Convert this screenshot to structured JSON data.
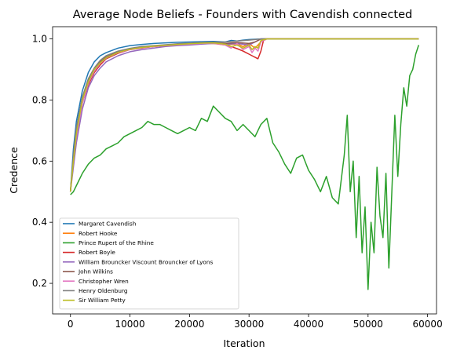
{
  "chart_data": {
    "type": "line",
    "title": "Average Node Beliefs - Founders with Cavendish connected",
    "xlabel": "Iteration",
    "ylabel": "Credence",
    "xlim": [
      -3000,
      61500
    ],
    "ylim": [
      0.1,
      1.04
    ],
    "xticks": [
      0,
      10000,
      20000,
      30000,
      40000,
      50000,
      60000
    ],
    "xtick_labels": [
      "0",
      "10000",
      "20000",
      "30000",
      "40000",
      "50000",
      "60000"
    ],
    "yticks": [
      0.2,
      0.4,
      0.6,
      0.8,
      1.0
    ],
    "ytick_labels": [
      "0.2",
      "0.4",
      "0.6",
      "0.8",
      "1.0"
    ],
    "grid": false,
    "legend_position": "lower-left",
    "series": [
      {
        "name": "Margaret Cavendish",
        "color": "#1f77b4",
        "x": [
          0,
          500,
          1000,
          2000,
          3000,
          4000,
          5000,
          6000,
          8000,
          10000,
          12000,
          14000,
          16000,
          18000,
          20000,
          22000,
          24000,
          26000,
          27000,
          28000,
          29000,
          30000,
          31000,
          32000,
          33000,
          40000,
          50000,
          58500
        ],
        "y": [
          0.5,
          0.64,
          0.73,
          0.83,
          0.89,
          0.925,
          0.945,
          0.955,
          0.97,
          0.978,
          0.982,
          0.985,
          0.987,
          0.989,
          0.99,
          0.991,
          0.992,
          0.99,
          0.995,
          0.993,
          0.996,
          0.998,
          0.999,
          1.0,
          1.0,
          1.0,
          1.0,
          1.0
        ]
      },
      {
        "name": "Robert Hooke",
        "color": "#ff7f0e",
        "x": [
          0,
          500,
          1000,
          2000,
          3000,
          4000,
          5000,
          6000,
          8000,
          10000,
          12000,
          14000,
          16000,
          18000,
          20000,
          22000,
          24000,
          26000,
          28000,
          29000,
          30000,
          31000,
          32000,
          33000,
          40000,
          50000,
          58500
        ],
        "y": [
          0.5,
          0.6,
          0.69,
          0.8,
          0.86,
          0.9,
          0.925,
          0.94,
          0.958,
          0.968,
          0.972,
          0.975,
          0.978,
          0.98,
          0.982,
          0.984,
          0.985,
          0.98,
          0.984,
          0.975,
          0.985,
          0.97,
          0.99,
          1.0,
          1.0,
          1.0,
          1.0
        ]
      },
      {
        "name": "Prince Rupert of the Rhine",
        "color": "#2ca02c",
        "x": [
          0,
          500,
          1000,
          2000,
          3000,
          4000,
          5000,
          6000,
          7000,
          8000,
          9000,
          10000,
          11000,
          12000,
          13000,
          14000,
          15000,
          16000,
          17000,
          18000,
          19000,
          20000,
          21000,
          22000,
          23000,
          24000,
          25000,
          26000,
          27000,
          28000,
          29000,
          30000,
          31000,
          32000,
          33000,
          34000,
          35000,
          36000,
          37000,
          38000,
          39000,
          40000,
          41000,
          42000,
          43000,
          44000,
          45000,
          46000,
          46500,
          47000,
          47500,
          48000,
          48500,
          49000,
          49500,
          50000,
          50500,
          51000,
          51500,
          52000,
          52500,
          53000,
          53500,
          54000,
          54500,
          55000,
          55500,
          56000,
          56500,
          57000,
          57500,
          58000,
          58500
        ],
        "y": [
          0.49,
          0.5,
          0.52,
          0.56,
          0.59,
          0.61,
          0.62,
          0.64,
          0.65,
          0.66,
          0.68,
          0.69,
          0.7,
          0.71,
          0.73,
          0.72,
          0.72,
          0.71,
          0.7,
          0.69,
          0.7,
          0.71,
          0.7,
          0.74,
          0.73,
          0.78,
          0.76,
          0.74,
          0.73,
          0.7,
          0.72,
          0.7,
          0.68,
          0.72,
          0.74,
          0.66,
          0.63,
          0.59,
          0.56,
          0.61,
          0.62,
          0.57,
          0.54,
          0.5,
          0.55,
          0.48,
          0.46,
          0.62,
          0.75,
          0.5,
          0.6,
          0.35,
          0.55,
          0.3,
          0.45,
          0.18,
          0.4,
          0.3,
          0.58,
          0.42,
          0.35,
          0.56,
          0.25,
          0.5,
          0.75,
          0.55,
          0.72,
          0.84,
          0.78,
          0.88,
          0.9,
          0.95,
          0.98
        ]
      },
      {
        "name": "Robert Boyle",
        "color": "#d62728",
        "x": [
          0,
          500,
          1000,
          2000,
          3000,
          4000,
          5000,
          6000,
          8000,
          10000,
          12000,
          14000,
          16000,
          18000,
          20000,
          22000,
          24000,
          26000,
          27000,
          28000,
          29000,
          29500,
          30000,
          30500,
          31000,
          31500,
          32000,
          32500,
          40000,
          50000,
          58500
        ],
        "y": [
          0.5,
          0.6,
          0.68,
          0.79,
          0.85,
          0.89,
          0.915,
          0.935,
          0.953,
          0.965,
          0.97,
          0.975,
          0.978,
          0.98,
          0.983,
          0.985,
          0.986,
          0.982,
          0.975,
          0.968,
          0.96,
          0.955,
          0.95,
          0.945,
          0.94,
          0.935,
          0.96,
          1.0,
          1.0,
          1.0,
          1.0
        ]
      },
      {
        "name": "William Brouncker Viscount Brouncker of Lyons",
        "color": "#9467bd",
        "x": [
          0,
          500,
          1000,
          2000,
          3000,
          4000,
          5000,
          6000,
          8000,
          10000,
          12000,
          14000,
          16000,
          18000,
          20000,
          22000,
          24000,
          26000,
          28000,
          30000,
          31000,
          32000,
          33000,
          40000,
          50000,
          58500
        ],
        "y": [
          0.5,
          0.58,
          0.66,
          0.77,
          0.84,
          0.88,
          0.905,
          0.925,
          0.945,
          0.958,
          0.965,
          0.97,
          0.975,
          0.978,
          0.98,
          0.983,
          0.985,
          0.982,
          0.985,
          0.98,
          0.99,
          1.0,
          1.0,
          1.0,
          1.0,
          1.0
        ]
      },
      {
        "name": "John Wilkins",
        "color": "#8c564b",
        "x": [
          0,
          500,
          1000,
          2000,
          3000,
          4000,
          5000,
          6000,
          8000,
          10000,
          12000,
          14000,
          16000,
          18000,
          20000,
          22000,
          24000,
          26000,
          28000,
          30000,
          31000,
          32000,
          33000,
          40000,
          50000,
          58500
        ],
        "y": [
          0.5,
          0.61,
          0.7,
          0.8,
          0.865,
          0.9,
          0.925,
          0.94,
          0.957,
          0.966,
          0.972,
          0.976,
          0.979,
          0.982,
          0.984,
          0.986,
          0.987,
          0.985,
          0.988,
          0.985,
          0.99,
          1.0,
          1.0,
          1.0,
          1.0,
          1.0
        ]
      },
      {
        "name": "Christopher Wren",
        "color": "#e377c2",
        "x": [
          0,
          500,
          1000,
          2000,
          3000,
          4000,
          5000,
          6000,
          8000,
          10000,
          12000,
          14000,
          16000,
          18000,
          20000,
          22000,
          24000,
          26000,
          27000,
          28000,
          29000,
          30000,
          30500,
          31000,
          31500,
          32000,
          33000,
          40000,
          50000,
          58500
        ],
        "y": [
          0.5,
          0.6,
          0.68,
          0.79,
          0.855,
          0.895,
          0.92,
          0.937,
          0.955,
          0.965,
          0.971,
          0.975,
          0.978,
          0.981,
          0.983,
          0.985,
          0.986,
          0.98,
          0.97,
          0.985,
          0.965,
          0.975,
          0.955,
          0.97,
          0.96,
          0.99,
          1.0,
          1.0,
          1.0,
          1.0
        ]
      },
      {
        "name": "Henry Oldenburg",
        "color": "#7f7f7f",
        "x": [
          0,
          500,
          1000,
          2000,
          3000,
          4000,
          5000,
          6000,
          8000,
          10000,
          12000,
          14000,
          16000,
          18000,
          20000,
          22000,
          24000,
          26000,
          28000,
          30000,
          31000,
          32000,
          33000,
          40000,
          50000,
          58500
        ],
        "y": [
          0.5,
          0.62,
          0.71,
          0.81,
          0.87,
          0.905,
          0.93,
          0.945,
          0.96,
          0.969,
          0.975,
          0.978,
          0.981,
          0.984,
          0.986,
          0.988,
          0.989,
          0.99,
          0.993,
          0.996,
          0.998,
          1.0,
          1.0,
          1.0,
          1.0,
          1.0
        ]
      },
      {
        "name": "Sir William Petty",
        "color": "#bcbd22",
        "x": [
          0,
          500,
          1000,
          2000,
          3000,
          4000,
          5000,
          6000,
          8000,
          10000,
          12000,
          14000,
          16000,
          18000,
          20000,
          22000,
          24000,
          26000,
          27000,
          28000,
          29000,
          30000,
          30500,
          31000,
          31500,
          32000,
          33000,
          40000,
          50000,
          58500
        ],
        "y": [
          0.5,
          0.6,
          0.69,
          0.8,
          0.86,
          0.9,
          0.922,
          0.938,
          0.956,
          0.966,
          0.972,
          0.976,
          0.979,
          0.982,
          0.984,
          0.986,
          0.987,
          0.983,
          0.975,
          0.98,
          0.97,
          0.98,
          0.965,
          0.975,
          0.97,
          0.995,
          1.0,
          1.0,
          1.0,
          1.0
        ]
      }
    ]
  }
}
